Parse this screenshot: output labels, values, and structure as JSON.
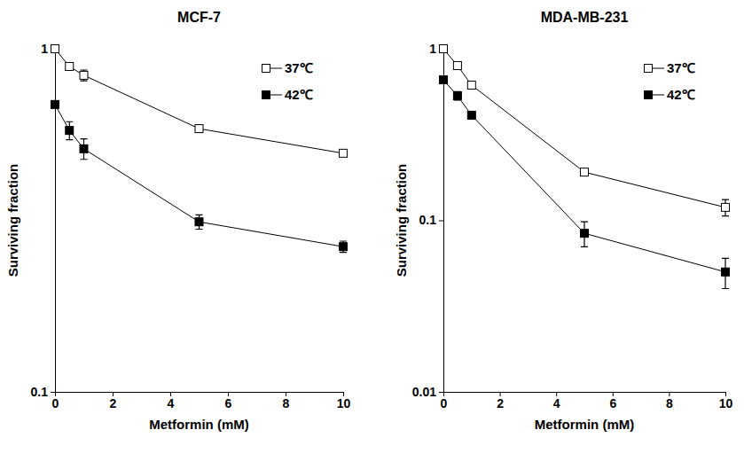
{
  "chart_data": [
    {
      "type": "line",
      "title": "MCF-7",
      "x_label": "Metformin (mM)",
      "y_label": "Surviving fraction",
      "log": "y",
      "legend": "top-right",
      "x": [
        0,
        0.5,
        1,
        5,
        10
      ],
      "xlim": [
        0,
        10
      ],
      "xticks": [
        0,
        2,
        4,
        6,
        8,
        10
      ],
      "ylim": [
        0.1,
        1
      ],
      "yticks": [
        0.1,
        1
      ],
      "series": [
        {
          "name": "37℃",
          "color": "#000000",
          "marker": "square-open",
          "values": [
            1.0,
            0.888,
            0.837,
            0.585,
            0.496
          ],
          "errors": [
            0,
            0,
            0.03,
            0.015,
            0.01
          ]
        },
        {
          "name": "42℃",
          "color": "#000000",
          "marker": "square",
          "values": [
            0.688,
            0.578,
            0.511,
            0.313,
            0.265
          ],
          "errors": [
            0,
            0.035,
            0.035,
            0.015,
            0.01
          ]
        }
      ]
    },
    {
      "type": "line",
      "title": "MDA-MB-231",
      "x_label": "Metformin (mM)",
      "y_label": "Surviving fraction",
      "log": "y",
      "legend": "top-right",
      "x": [
        0,
        0.5,
        1,
        5,
        10
      ],
      "xlim": [
        0,
        10
      ],
      "xticks": [
        0,
        2,
        4,
        6,
        8,
        10
      ],
      "ylim": [
        0.01,
        1
      ],
      "yticks": [
        0.01,
        0.1,
        1
      ],
      "series": [
        {
          "name": "37℃",
          "color": "#000000",
          "marker": "square-open",
          "values": [
            1.0,
            0.798,
            0.614,
            0.191,
            0.119
          ],
          "errors": [
            0,
            0,
            0,
            0,
            0.013
          ]
        },
        {
          "name": "42℃",
          "color": "#000000",
          "marker": "square",
          "values": [
            0.659,
            0.532,
            0.41,
            0.084,
            0.05
          ],
          "errors": [
            0,
            0.03,
            0.02,
            0.014,
            0.01
          ]
        }
      ]
    }
  ]
}
